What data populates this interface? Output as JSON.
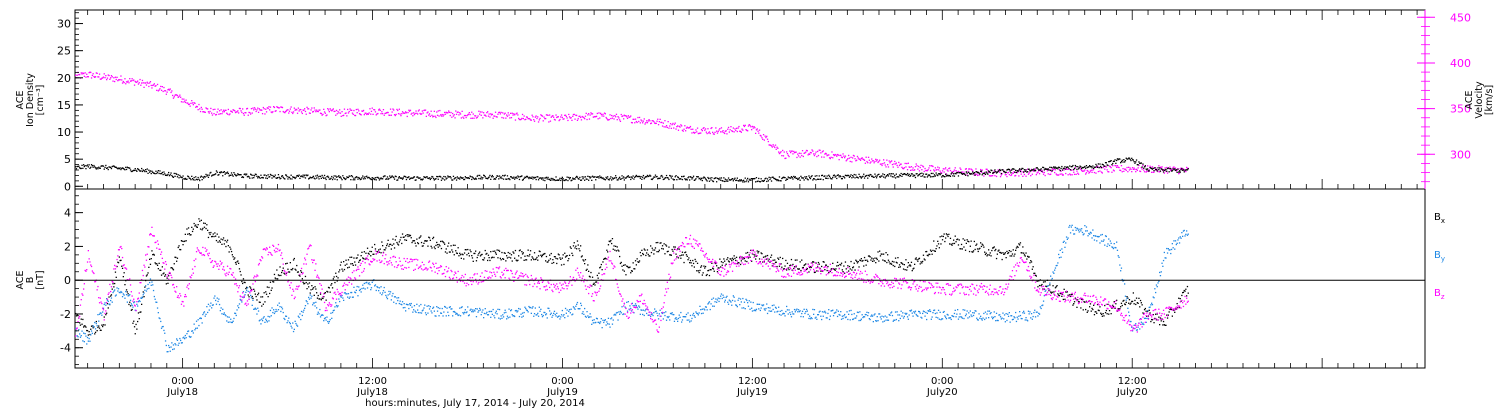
{
  "colors": {
    "black": "#000000",
    "magenta": "#ff00ff",
    "blue": "#1e88e5"
  },
  "time_axis": {
    "title": "hours:minutes, July 17, 2014 - July 20, 2014",
    "xlim_hours_since_jul17": [
      17.2,
      102.5
    ],
    "major_ticks": [
      {
        "hours": 24,
        "time_label": "0:00",
        "date_label": "July18"
      },
      {
        "hours": 36,
        "time_label": "12:00",
        "date_label": "July18"
      },
      {
        "hours": 48,
        "time_label": "0:00",
        "date_label": "July19"
      },
      {
        "hours": 60,
        "time_label": "12:00",
        "date_label": "July19"
      },
      {
        "hours": 72,
        "time_label": "0:00",
        "date_label": "July20"
      },
      {
        "hours": 84,
        "time_label": "12:00",
        "date_label": "July20"
      }
    ]
  },
  "chart_data": [
    {
      "type": "scatter",
      "panel": "top",
      "ylabel_left": [
        "ACE",
        "Ion Density",
        "[cm⁻³]"
      ],
      "ylabel_right": [
        "ACE",
        "Velocity",
        "[km/s]"
      ],
      "ylim_left": [
        -0.5,
        32.5
      ],
      "ylim_right": [
        262,
        458
      ],
      "left_ticks": [
        0,
        5,
        10,
        15,
        20,
        25,
        30
      ],
      "right_ticks": [
        300,
        350,
        400,
        450
      ],
      "series": [
        {
          "axis": "left",
          "color": "#000000",
          "x_hours": [
            17.2,
            18,
            19,
            20,
            21,
            22,
            23,
            24,
            25,
            26,
            27,
            28,
            30,
            32,
            34,
            36,
            38,
            40,
            42,
            44,
            46,
            48,
            50,
            52,
            54,
            56,
            58,
            60,
            62,
            64,
            66,
            68,
            70,
            72,
            74,
            76,
            78,
            80,
            82,
            83,
            84,
            85,
            86,
            87.5
          ],
          "y": [
            3.5,
            3.8,
            3.6,
            3.4,
            3.2,
            2.8,
            2.4,
            1.8,
            1.5,
            2.6,
            2.3,
            2.0,
            1.9,
            1.8,
            1.7,
            1.7,
            1.6,
            1.6,
            1.7,
            1.8,
            1.6,
            1.5,
            1.6,
            1.7,
            1.8,
            1.6,
            1.3,
            1.3,
            1.5,
            1.7,
            1.9,
            2.0,
            2.1,
            2.2,
            2.5,
            2.9,
            3.2,
            3.5,
            3.9,
            4.8,
            5.0,
            3.2,
            3.1,
            3.0
          ]
        },
        {
          "axis": "right",
          "color": "#ff00ff",
          "x_hours": [
            17.2,
            18,
            19,
            20,
            21,
            22,
            23,
            24,
            25,
            26,
            27,
            28,
            30,
            32,
            34,
            36,
            38,
            40,
            42,
            44,
            46,
            48,
            50,
            52,
            54,
            56,
            58,
            60,
            62,
            64,
            66,
            68,
            70,
            72,
            74,
            76,
            78,
            80,
            82,
            84,
            86,
            87.5
          ],
          "y": [
            386,
            388,
            385,
            383,
            380,
            376,
            370,
            360,
            352,
            346,
            348,
            347,
            350,
            348,
            346,
            348,
            346,
            345,
            344,
            344,
            340,
            340,
            343,
            340,
            336,
            328,
            326,
            330,
            300,
            302,
            297,
            292,
            287,
            283,
            281,
            280,
            281,
            282,
            284,
            285,
            284,
            283
          ]
        }
      ]
    },
    {
      "type": "scatter",
      "panel": "bottom",
      "ylabel_left": [
        "ACE",
        "B",
        "[nT]"
      ],
      "ylim": [
        -5.2,
        5.4
      ],
      "ticks": [
        -4,
        -2,
        0,
        2,
        4
      ],
      "legend_position": "right",
      "series": [
        {
          "name": "Bx",
          "legend_base": "B",
          "legend_sub": "x",
          "color": "#000000",
          "x_hours": [
            17.2,
            18,
            19,
            20,
            21,
            22,
            23,
            24,
            25,
            26,
            27,
            28,
            29,
            30,
            31,
            32,
            33,
            34,
            36,
            38,
            40,
            42,
            44,
            46,
            48,
            49,
            50,
            51,
            52,
            53,
            54,
            55,
            56,
            57,
            58,
            60,
            62,
            64,
            66,
            68,
            70,
            72,
            74,
            76,
            77,
            78,
            79,
            80,
            81,
            82,
            83,
            84,
            85,
            86,
            87.5
          ],
          "y": [
            -2.0,
            -3.0,
            -2.5,
            1.5,
            -3.0,
            1.5,
            0.0,
            2.5,
            3.5,
            2.5,
            2.0,
            -0.5,
            -1.2,
            0.5,
            1.0,
            -0.5,
            -1.0,
            0.8,
            1.8,
            2.5,
            2.2,
            1.5,
            1.5,
            1.5,
            1.2,
            2.2,
            -0.5,
            2.5,
            0.5,
            1.5,
            2.0,
            1.8,
            1.2,
            0.5,
            1.0,
            1.5,
            1.0,
            0.8,
            0.8,
            1.5,
            0.8,
            2.5,
            2.0,
            1.5,
            2.0,
            0.0,
            -0.5,
            -1.0,
            -1.5,
            -1.8,
            -1.5,
            -1.0,
            -2.0,
            -2.5,
            -0.5
          ]
        },
        {
          "name": "By",
          "legend_base": "B",
          "legend_sub": "y",
          "color": "#1e88e5",
          "x_hours": [
            17.2,
            18,
            19,
            20,
            21,
            22,
            23,
            24,
            25,
            26,
            27,
            28,
            29,
            30,
            31,
            32,
            33,
            34,
            36,
            38,
            40,
            42,
            44,
            46,
            48,
            49,
            50,
            51,
            52,
            54,
            56,
            58,
            60,
            62,
            64,
            66,
            68,
            70,
            72,
            74,
            76,
            78,
            79,
            80,
            81,
            82,
            83,
            84,
            85,
            86,
            87.5
          ],
          "y": [
            -3.0,
            -3.5,
            -1.5,
            -0.5,
            -1.5,
            0.0,
            -4.0,
            -3.5,
            -2.5,
            -1.0,
            -2.5,
            -0.5,
            -2.5,
            -1.5,
            -2.8,
            -1.0,
            -2.5,
            -1.0,
            -0.2,
            -1.5,
            -1.8,
            -1.8,
            -2.0,
            -1.8,
            -2.0,
            -1.5,
            -2.5,
            -2.5,
            -1.5,
            -2.0,
            -2.2,
            -1.0,
            -1.5,
            -1.8,
            -2.0,
            -2.0,
            -2.2,
            -2.0,
            -2.0,
            -2.0,
            -2.2,
            -2.0,
            0.5,
            3.0,
            3.0,
            2.5,
            2.0,
            -3.0,
            -2.0,
            1.5,
            3.0
          ]
        },
        {
          "name": "Bz",
          "legend_base": "B",
          "legend_sub": "z",
          "color": "#ff00ff",
          "x_hours": [
            17.2,
            18,
            19,
            20,
            21,
            22,
            23,
            24,
            25,
            26,
            27,
            28,
            29,
            30,
            31,
            32,
            33,
            34,
            36,
            38,
            40,
            42,
            44,
            46,
            48,
            49,
            50,
            51,
            52,
            53,
            54,
            55,
            56,
            57,
            58,
            60,
            62,
            64,
            66,
            68,
            70,
            72,
            74,
            76,
            77,
            78,
            79,
            80,
            81,
            82,
            83,
            84,
            85,
            86,
            87.5
          ],
          "y": [
            -3.5,
            1.5,
            -2.0,
            2.0,
            -1.5,
            3.0,
            0.5,
            -1.5,
            2.0,
            1.0,
            0.5,
            -1.5,
            1.5,
            2.0,
            -1.0,
            2.0,
            -1.5,
            -0.5,
            1.5,
            1.0,
            0.8,
            0.0,
            0.5,
            0.0,
            -0.5,
            0.5,
            -1.0,
            1.5,
            -2.0,
            -1.0,
            -3.0,
            1.5,
            2.5,
            1.5,
            0.5,
            1.5,
            0.5,
            0.8,
            0.5,
            0.0,
            -0.2,
            -0.5,
            -0.5,
            -0.5,
            1.5,
            -0.5,
            -0.8,
            -1.0,
            -1.0,
            -1.2,
            -1.5,
            -3.0,
            -2.0,
            -2.0,
            -1.0
          ]
        }
      ]
    }
  ]
}
